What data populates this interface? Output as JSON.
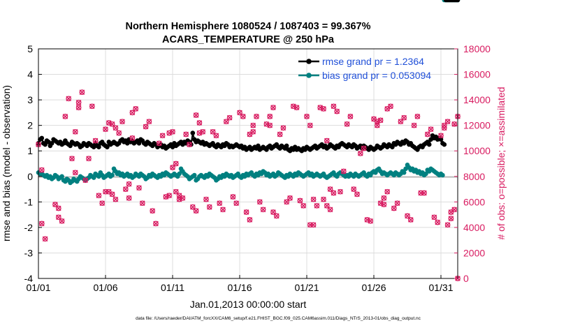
{
  "chart_data": {
    "type": "line",
    "title_line1": "Northern Hemisphere 1080524 / 1087403 = 99.367%",
    "title_line2": "ACARS_TEMPERATURE @ 250 hPa",
    "xlabel": "Jan.01,2013 00:00:00 start",
    "ylabel_left": "rmse and bias (model - observation)",
    "ylabel_right": "# of obs: o=possible; ×=assimilated",
    "footer": "data file: /Users/raeder/DAI/ATM_forcXX/CAM6_setup/f.e21.FHIST_BGC.f09_025.CAM6assim.011/Diags_NTrS_2013-01/obs_diag_output.nc",
    "xlim": [
      0,
      31.25
    ],
    "ylim_left": [
      -4,
      5
    ],
    "ylim_right": [
      0,
      18000
    ],
    "x_ticks": [
      0,
      5,
      10,
      15,
      20,
      25,
      30
    ],
    "x_tick_labels": [
      "01/01",
      "01/06",
      "01/11",
      "01/16",
      "01/21",
      "01/26",
      "01/31"
    ],
    "y_left_ticks": [
      "-4",
      "-3",
      "-2",
      "-1",
      "0",
      "1",
      "2",
      "3",
      "4",
      "5"
    ],
    "y_right_ticks": [
      "0",
      "2000",
      "4000",
      "6000",
      "8000",
      "10000",
      "12000",
      "14000",
      "16000",
      "18000"
    ],
    "legend": [
      {
        "name": "rmse",
        "label": "rmse grand pr = 1.2364"
      },
      {
        "name": "bias",
        "label": "bias grand pr = 0.053094"
      }
    ],
    "colors": {
      "rmse": "#000000",
      "bias": "#008080",
      "obs": "#d81b60",
      "legend_text": "#1f4fd8",
      "grid": "#dcdcdc",
      "zero": "#b4b4b4"
    },
    "x_obs": [
      0.0,
      0.25,
      1.25,
      1.5,
      2.0,
      2.25,
      2.5,
      2.75,
      3.0,
      3.25,
      3.5,
      3.75,
      4.0,
      4.25,
      4.5,
      4.75,
      5.0,
      5.25,
      5.5,
      5.75,
      6.0,
      6.25,
      6.5,
      6.75,
      7.0,
      7.25,
      7.5,
      7.75,
      8.0,
      8.25,
      8.5,
      8.75,
      9.0,
      9.25,
      9.5,
      9.75,
      10.0,
      10.25,
      10.5,
      10.75,
      11.0,
      11.25,
      11.5,
      11.75,
      12.0,
      12.25,
      12.5,
      12.75,
      13.0,
      13.25,
      13.5,
      13.75,
      14.0,
      14.25,
      14.5,
      14.75,
      15.0,
      15.25,
      15.5,
      15.75,
      16.0,
      16.25,
      16.5,
      16.75,
      17.0,
      17.25,
      17.5,
      17.75,
      18.0,
      18.25,
      18.5,
      18.75,
      19.0,
      19.25,
      19.5,
      19.75,
      20.0,
      20.25,
      20.5,
      20.75,
      21.0,
      21.25,
      21.5,
      21.75,
      22.0,
      22.25,
      22.5,
      22.75,
      23.0,
      23.25,
      23.5,
      23.75,
      24.0,
      24.25,
      24.5,
      24.75,
      25.0,
      25.25,
      25.5,
      25.75,
      26.0,
      26.25,
      26.5,
      26.75,
      27.0,
      27.25,
      27.5,
      27.75,
      28.0,
      28.25,
      28.5,
      28.75,
      29.0,
      29.25,
      29.5,
      29.75,
      30.0,
      30.25,
      30.5,
      30.75,
      31.0,
      31.25
    ],
    "obs_count": [
      10500,
      8500,
      5800,
      5500,
      12700,
      14100,
      9400,
      8300,
      13800,
      14600,
      7700,
      9400,
      13500,
      10800,
      6500,
      5900,
      11700,
      12200,
      6600,
      6200,
      11400,
      12300,
      7000,
      6300,
      13000,
      13300,
      7100,
      5900,
      11900,
      12300,
      5300,
      4300,
      10600,
      11200,
      6400,
      6500,
      8700,
      9000,
      6200,
      6300,
      11300,
      10500,
      5600,
      5300,
      11400,
      11500,
      6200,
      5600,
      11500,
      11200,
      5900,
      5400,
      12300,
      12600,
      6400,
      5900,
      13000,
      12700,
      5200,
      4600,
      12000,
      12700,
      6000,
      5400,
      12100,
      12700,
      5200,
      4900,
      11300,
      11800,
      6000,
      6300,
      13500,
      13400,
      6100,
      5700,
      12700,
      12000,
      6200,
      5700,
      13400,
      13300,
      5700,
      5400,
      13500,
      13100,
      6800,
      8400,
      12100,
      12700,
      7000,
      6600,
      9800,
      10200,
      4600,
      4500,
      12500,
      12300,
      5900,
      5800,
      13300,
      13500,
      5500,
      5900,
      12300,
      12600,
      4900,
      4600,
      12000,
      12700,
      6700,
      6700,
      11300,
      11700,
      4800,
      4400,
      11200,
      11800,
      4200,
      4700,
      12100,
      12700
    ],
    "x_extra_obs": [
      0.25,
      0.5,
      1.5,
      1.75,
      2.75,
      3.0,
      5.0,
      5.25,
      5.5,
      5.75,
      6.75,
      7.0,
      9.75,
      10.0,
      10.25,
      10.5,
      11.75,
      12.0,
      15.75,
      16.0,
      17.25,
      17.5,
      20.25,
      20.5,
      21.25,
      21.5,
      21.75,
      22.0,
      25.25,
      25.5,
      25.75,
      26.0,
      30.25,
      30.5,
      30.75,
      31.0,
      31.25
    ],
    "extra_obs_count": [
      4300,
      3100,
      4800,
      4500,
      11500,
      13400,
      6800,
      6800,
      12100,
      11800,
      7400,
      11000,
      11400,
      11500,
      6800,
      6500,
      12800,
      12200,
      11300,
      11500,
      12000,
      13400,
      4200,
      4200,
      6200,
      10800,
      7000,
      6700,
      12000,
      12400,
      6300,
      6800,
      12000,
      12300,
      5200,
      5400,
      0
    ],
    "x_series": [
      0.0,
      0.125,
      0.25,
      0.375,
      0.5,
      0.625,
      0.75,
      0.875,
      1.0,
      1.125,
      1.25,
      1.375,
      1.5,
      1.625,
      1.75,
      1.875,
      2.0,
      2.125,
      2.25,
      2.375,
      2.5,
      2.625,
      2.75,
      2.875,
      3.0,
      3.125,
      3.25,
      3.375,
      3.5,
      3.625,
      3.75,
      3.875,
      4.0,
      4.125,
      4.25,
      4.375,
      4.5,
      4.625,
      4.75,
      4.875,
      5.0,
      5.125,
      5.25,
      5.375,
      5.5,
      5.625,
      5.75,
      5.875,
      6.0,
      6.125,
      6.25,
      6.375,
      6.5,
      6.625,
      6.75,
      6.875,
      7.0,
      7.125,
      7.25,
      7.375,
      7.5,
      7.625,
      7.75,
      7.875,
      8.0,
      8.125,
      8.25,
      8.375,
      8.5,
      8.625,
      8.75,
      8.875,
      9.0,
      9.125,
      9.25,
      9.375,
      9.5,
      9.625,
      9.75,
      9.875,
      10.0,
      10.125,
      10.25,
      10.375,
      10.5,
      10.625,
      10.75,
      10.875,
      11.0,
      11.125,
      11.25,
      11.375,
      11.5,
      11.625,
      11.75,
      11.875,
      12.0,
      12.125,
      12.25,
      12.375,
      12.5,
      12.625,
      12.75,
      12.875,
      13.0,
      13.125,
      13.25,
      13.375,
      13.5,
      13.625,
      13.75,
      13.875,
      14.0,
      14.125,
      14.25,
      14.375,
      14.5,
      14.625,
      14.75,
      14.875,
      15.0,
      15.125,
      15.25,
      15.375,
      15.5,
      15.625,
      15.75,
      15.875,
      16.0,
      16.125,
      16.25,
      16.375,
      16.5,
      16.625,
      16.75,
      16.875,
      17.0,
      17.125,
      17.25,
      17.375,
      17.5,
      17.625,
      17.75,
      17.875,
      18.0,
      18.125,
      18.25,
      18.375,
      18.5,
      18.625,
      18.75,
      18.875,
      19.0,
      19.125,
      19.25,
      19.375,
      19.5,
      19.625,
      19.75,
      19.875,
      20.0,
      20.125,
      20.25,
      20.375,
      20.5,
      20.625,
      20.75,
      20.875,
      21.0,
      21.125,
      21.25,
      21.375,
      21.5,
      21.625,
      21.75,
      21.875,
      22.0,
      22.125,
      22.25,
      22.375,
      22.5,
      22.625,
      22.75,
      22.875,
      23.0,
      23.125,
      23.25,
      23.375,
      23.5,
      23.625,
      23.75,
      23.875,
      24.0,
      24.125,
      24.25,
      24.375,
      24.5,
      24.625,
      24.75,
      24.875,
      25.0,
      25.125,
      25.25,
      25.375,
      25.5,
      25.625,
      25.75,
      25.875,
      26.0,
      26.125,
      26.25,
      26.375,
      26.5,
      26.625,
      26.75,
      26.875,
      27.0,
      27.125,
      27.25,
      27.375,
      27.5,
      27.625,
      27.75,
      27.875,
      28.0,
      28.125,
      28.25,
      28.375,
      28.5,
      28.625,
      28.75,
      28.875,
      29.0,
      29.125,
      29.25,
      29.375,
      29.5,
      29.625,
      29.75,
      29.875,
      30.0,
      30.125,
      30.25,
      30.375,
      30.5,
      30.625,
      30.75,
      30.875,
      31.0,
      31.125,
      31.25
    ],
    "rmse": [
      1.3,
      1.45,
      1.5,
      1.3,
      1.25,
      1.4,
      1.35,
      1.2,
      1.3,
      1.45,
      1.4,
      1.35,
      1.3,
      1.35,
      1.25,
      1.3,
      1.4,
      1.3,
      1.25,
      1.2,
      1.35,
      1.3,
      1.25,
      1.3,
      1.25,
      1.15,
      1.2,
      1.3,
      1.25,
      1.2,
      1.3,
      1.25,
      1.2,
      1.15,
      1.3,
      1.2,
      1.15,
      1.3,
      1.35,
      1.25,
      1.2,
      1.15,
      1.35,
      1.25,
      1.3,
      1.35,
      1.3,
      1.25,
      1.3,
      1.4,
      1.45,
      1.35,
      1.4,
      1.3,
      1.45,
      1.35,
      1.4,
      1.3,
      1.35,
      1.4,
      1.3,
      1.45,
      1.4,
      1.3,
      1.25,
      1.35,
      1.3,
      1.25,
      1.2,
      1.3,
      1.25,
      1.15,
      1.2,
      1.25,
      1.15,
      1.2,
      1.1,
      1.15,
      1.2,
      1.25,
      1.15,
      1.3,
      1.2,
      1.25,
      1.3,
      1.35,
      1.25,
      1.35,
      1.3,
      1.4,
      1.35,
      1.25,
      1.7,
      1.45,
      1.35,
      1.4,
      1.35,
      1.3,
      1.35,
      1.25,
      1.3,
      1.25,
      1.2,
      1.25,
      1.3,
      1.2,
      1.15,
      1.25,
      1.2,
      1.15,
      1.25,
      1.2,
      1.3,
      1.25,
      1.15,
      1.2,
      1.15,
      1.2,
      1.25,
      1.2,
      1.15,
      1.2,
      1.1,
      1.15,
      1.05,
      1.1,
      1.15,
      1.05,
      1.1,
      1.15,
      1.1,
      1.2,
      1.05,
      1.1,
      1.15,
      1.1,
      1.05,
      1.15,
      1.2,
      1.1,
      1.15,
      1.2,
      1.25,
      1.15,
      1.1,
      1.2,
      1.15,
      1.1,
      1.2,
      1.05,
      1.0,
      1.1,
      1.05,
      1.15,
      1.05,
      1.1,
      1.05,
      1.0,
      1.1,
      1.05,
      1.15,
      1.1,
      1.05,
      1.1,
      1.15,
      1.2,
      1.1,
      1.15,
      1.2,
      1.25,
      1.15,
      1.2,
      1.1,
      1.15,
      1.25,
      1.2,
      1.15,
      1.1,
      1.2,
      1.15,
      1.25,
      1.3,
      1.25,
      1.2,
      1.15,
      1.25,
      1.2,
      1.15,
      1.25,
      1.2,
      1.1,
      1.15,
      1.2,
      1.1,
      1.2,
      1.15,
      1.1,
      1.05,
      1.15,
      1.1,
      1.05,
      1.1,
      1.2,
      1.15,
      1.1,
      1.15,
      1.25,
      1.2,
      1.15,
      1.25,
      1.2,
      1.15,
      1.3,
      1.25,
      1.35,
      1.3,
      1.25,
      1.35,
      1.3,
      1.4,
      1.35,
      1.25,
      1.3,
      1.2,
      1.15,
      1.1,
      1.05,
      1.15,
      1.2,
      1.15,
      1.25,
      1.3,
      1.35,
      1.25,
      1.45,
      1.6,
      1.5,
      1.55,
      1.45,
      1.5,
      1.45,
      1.3,
      1.25
    ],
    "bias": [
      0.15,
      0.1,
      0.1,
      0.05,
      0.0,
      0.05,
      -0.05,
      0.0,
      -0.1,
      -0.05,
      0.05,
      0.0,
      -0.1,
      -0.05,
      0.0,
      -0.15,
      -0.2,
      -0.1,
      -0.15,
      -0.25,
      -0.2,
      -0.1,
      -0.15,
      -0.2,
      -0.1,
      0.0,
      -0.05,
      -0.1,
      -0.15,
      -0.1,
      -0.05,
      0.05,
      0.0,
      -0.05,
      0.1,
      0.05,
      0.0,
      0.15,
      0.05,
      -0.05,
      0.0,
      0.05,
      0.1,
      0.0,
      0.05,
      0.3,
      0.2,
      0.1,
      0.15,
      0.05,
      0.1,
      0.0,
      0.05,
      0.1,
      0.0,
      0.05,
      -0.05,
      0.0,
      0.1,
      0.05,
      0.0,
      0.1,
      0.05,
      0.0,
      -0.1,
      -0.05,
      0.05,
      0.0,
      0.1,
      0.05,
      0.0,
      -0.05,
      0.05,
      0.0,
      0.1,
      0.05,
      0.15,
      0.1,
      0.05,
      0.0,
      0.05,
      0.1,
      0.05,
      0.0,
      0.1,
      0.3,
      0.2,
      0.1,
      0.05,
      0.0,
      -0.1,
      -0.05,
      0.0,
      0.05,
      -0.15,
      -0.1,
      0.0,
      0.05,
      0.0,
      -0.05,
      0.05,
      0.0,
      0.1,
      0.05,
      0.0,
      -0.05,
      -0.15,
      -0.1,
      0.0,
      -0.05,
      0.05,
      0.0,
      0.1,
      0.05,
      0.0,
      0.05,
      -0.05,
      0.0,
      0.05,
      0.1,
      0.0,
      -0.05,
      0.05,
      0.0,
      0.1,
      0.05,
      0.1,
      0.15,
      0.05,
      0.0,
      0.1,
      0.05,
      0.15,
      0.1,
      0.2,
      0.15,
      0.05,
      0.1,
      0.0,
      0.05,
      0.1,
      0.0,
      0.05,
      0.15,
      0.1,
      0.05,
      0.0,
      -0.05,
      0.05,
      0.0,
      0.1,
      0.05,
      0.0,
      0.1,
      0.05,
      0.15,
      0.1,
      0.05,
      0.0,
      0.05,
      0.1,
      0.15,
      0.05,
      0.1,
      0.0,
      0.05,
      0.1,
      0.05,
      0.0,
      0.05,
      0.1,
      0.0,
      -0.05,
      0.0,
      0.05,
      0.1,
      0.15,
      0.05,
      0.0,
      0.1,
      0.15,
      0.1,
      0.05,
      0.0,
      0.05,
      0.0,
      0.1,
      0.05,
      0.0,
      0.1,
      0.05,
      0.0,
      0.05,
      0.1,
      0.15,
      0.05,
      0.0,
      0.1,
      0.05,
      0.15,
      0.2,
      0.15,
      0.25,
      0.3,
      0.2,
      0.1,
      0.15,
      0.1,
      0.05,
      0.1,
      0.15,
      0.1,
      0.05,
      0.15,
      0.1,
      0.05,
      0.1,
      0.2,
      0.15,
      0.3,
      0.45,
      0.35,
      0.25,
      0.3,
      0.2,
      0.25,
      0.15,
      0.2,
      0.1,
      0.15,
      0.05,
      0.1,
      0.25,
      0.2,
      0.3,
      0.25,
      0.2,
      0.15,
      0.1,
      0.05,
      0.1,
      0.05
    ]
  }
}
